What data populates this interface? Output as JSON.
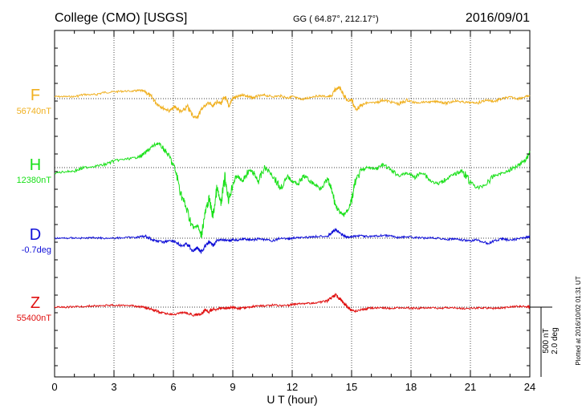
{
  "header": {
    "station": "College (CMO)  [USGS]",
    "coords": "GG ( 64.87°, 212.17°)",
    "date": "2016/09/01"
  },
  "footer": {
    "xlabel": "U T (hour)",
    "plotted": "Plotted at 2016/10/02 01:31  UT"
  },
  "scale": {
    "nt": "500 nT",
    "deg": "2.0 deg"
  },
  "colors": {
    "F": "#f0b020",
    "H": "#18e018",
    "D": "#1010d8",
    "Z": "#e01010",
    "grid": "#000000"
  },
  "chart_data": {
    "type": "line",
    "xlabel": "U T (hour)",
    "xlim": [
      0,
      24
    ],
    "xticks": [
      0,
      3,
      6,
      9,
      12,
      15,
      18,
      21,
      24
    ],
    "grid": true,
    "series": [
      {
        "name": "F",
        "label": "F",
        "baseline_label": "56740nT",
        "baseline_offset": 0,
        "x": [
          0,
          0.5,
          1,
          1.5,
          2,
          2.5,
          3,
          3.5,
          4,
          4.3,
          4.6,
          4.9,
          5.2,
          5.5,
          5.8,
          6.1,
          6.4,
          6.7,
          7,
          7.2,
          7.4,
          7.6,
          7.8,
          8,
          8.2,
          8.4,
          8.6,
          8.8,
          9,
          9.2,
          9.5,
          9.8,
          10,
          10.3,
          10.6,
          11,
          11.4,
          11.8,
          12,
          12.3,
          12.6,
          13,
          13.4,
          13.8,
          14,
          14.2,
          14.4,
          14.6,
          14.8,
          15,
          15.2,
          15.5,
          15.8,
          16.2,
          16.6,
          17,
          17.4,
          17.8,
          18.2,
          18.6,
          19,
          19.4,
          19.8,
          20.2,
          20.6,
          21,
          21.4,
          21.8,
          22.2,
          22.6,
          23,
          23.4,
          23.8,
          24
        ],
        "y": [
          15,
          15,
          15,
          30,
          28,
          45,
          50,
          55,
          55,
          60,
          50,
          10,
          -40,
          -70,
          -90,
          -60,
          -100,
          -60,
          -130,
          -140,
          -80,
          -50,
          -30,
          -60,
          -20,
          -35,
          10,
          -55,
          5,
          10,
          30,
          15,
          5,
          20,
          25,
          15,
          20,
          5,
          15,
          0,
          -5,
          15,
          20,
          15,
          20,
          70,
          80,
          30,
          -20,
          -5,
          -80,
          -50,
          -30,
          -30,
          -10,
          -25,
          -40,
          -10,
          -30,
          -25,
          -25,
          -20,
          -35,
          -15,
          -25,
          -30,
          -30,
          -10,
          -20,
          0,
          10,
          0,
          15,
          20
        ]
      },
      {
        "name": "H",
        "label": "H",
        "baseline_label": "12380nT",
        "baseline_offset": 0,
        "x": [
          0,
          0.5,
          1,
          1.5,
          2,
          2.5,
          3,
          3.5,
          4,
          4.3,
          4.6,
          4.9,
          5.2,
          5.5,
          5.8,
          6.1,
          6.4,
          6.7,
          7,
          7.2,
          7.4,
          7.6,
          7.8,
          8,
          8.2,
          8.4,
          8.6,
          8.8,
          9,
          9.2,
          9.5,
          9.8,
          10,
          10.3,
          10.6,
          11,
          11.4,
          11.8,
          12,
          12.3,
          12.6,
          13,
          13.4,
          13.8,
          14,
          14.2,
          14.4,
          14.6,
          14.8,
          15,
          15.2,
          15.5,
          15.8,
          16.2,
          16.6,
          17,
          17.4,
          17.8,
          18.2,
          18.6,
          19,
          19.4,
          19.8,
          20.2,
          20.6,
          21,
          21.4,
          21.8,
          22.2,
          22.6,
          23,
          23.4,
          23.8,
          24
        ],
        "y": [
          -40,
          -30,
          -25,
          0,
          10,
          20,
          50,
          60,
          70,
          80,
          110,
          150,
          180,
          140,
          80,
          -20,
          -200,
          -320,
          -450,
          -420,
          -500,
          -340,
          -230,
          -360,
          -150,
          -270,
          -70,
          -240,
          -120,
          -60,
          -100,
          -20,
          -30,
          -100,
          0,
          -50,
          -150,
          -70,
          -100,
          -120,
          -60,
          -110,
          -150,
          -90,
          -170,
          -280,
          -330,
          -350,
          -310,
          -240,
          -100,
          -20,
          0,
          -10,
          20,
          -20,
          -60,
          -40,
          -70,
          -30,
          -100,
          -120,
          -80,
          -50,
          -20,
          -110,
          -150,
          -120,
          -60,
          -40,
          -20,
          20,
          60,
          110
        ]
      },
      {
        "name": "D",
        "label": "D",
        "baseline_label": "-0.7deg",
        "baseline_offset": 0,
        "x": [
          0,
          0.5,
          1,
          1.5,
          2,
          2.5,
          3,
          3.5,
          4,
          4.3,
          4.6,
          4.9,
          5.2,
          5.5,
          5.8,
          6.1,
          6.4,
          6.7,
          7,
          7.2,
          7.4,
          7.6,
          7.8,
          8,
          8.2,
          8.4,
          8.6,
          8.8,
          9,
          9.2,
          9.5,
          9.8,
          10,
          10.3,
          10.6,
          11,
          11.4,
          11.8,
          12,
          12.3,
          12.6,
          13,
          13.4,
          13.8,
          14,
          14.2,
          14.4,
          14.6,
          14.8,
          15,
          15.2,
          15.5,
          15.8,
          16.2,
          16.6,
          17,
          17.4,
          17.8,
          18.2,
          18.6,
          19,
          19.4,
          19.8,
          20.2,
          20.6,
          21,
          21.4,
          21.8,
          22.2,
          22.6,
          23,
          23.4,
          23.8,
          24
        ],
        "y": [
          0,
          0,
          2,
          0,
          4,
          0,
          0,
          4,
          5,
          10,
          15,
          -10,
          -20,
          -30,
          -15,
          -25,
          -60,
          -40,
          -95,
          -70,
          -100,
          -60,
          -30,
          -50,
          -20,
          -10,
          -15,
          -20,
          -10,
          -15,
          -5,
          -10,
          -15,
          -5,
          -10,
          -20,
          0,
          -5,
          0,
          5,
          5,
          10,
          15,
          15,
          40,
          60,
          40,
          20,
          5,
          10,
          15,
          20,
          10,
          15,
          20,
          15,
          5,
          10,
          5,
          0,
          5,
          0,
          -10,
          -5,
          -15,
          -20,
          -10,
          -40,
          -20,
          -5,
          -15,
          -5,
          5,
          10
        ]
      },
      {
        "name": "Z",
        "label": "Z",
        "baseline_label": "55400nT",
        "baseline_offset": 0,
        "x": [
          0,
          0.5,
          1,
          1.5,
          2,
          2.5,
          3,
          3.5,
          4,
          4.3,
          4.6,
          4.9,
          5.2,
          5.5,
          5.8,
          6.1,
          6.4,
          6.7,
          7,
          7.2,
          7.4,
          7.6,
          7.8,
          8,
          8.2,
          8.4,
          8.6,
          8.8,
          9,
          9.2,
          9.5,
          9.8,
          10,
          10.3,
          10.6,
          11,
          11.4,
          11.8,
          12,
          12.3,
          12.6,
          13,
          13.4,
          13.8,
          14,
          14.2,
          14.4,
          14.6,
          14.8,
          15,
          15.2,
          15.5,
          15.8,
          16.2,
          16.6,
          17,
          17.4,
          17.8,
          18.2,
          18.6,
          19,
          19.4,
          19.8,
          20.2,
          20.6,
          21,
          21.4,
          21.8,
          22.2,
          22.6,
          23,
          23.4,
          23.8,
          24
        ],
        "y": [
          0,
          0,
          2,
          5,
          10,
          10,
          15,
          12,
          10,
          5,
          -5,
          -15,
          -30,
          -45,
          -50,
          -55,
          -40,
          -45,
          -60,
          -55,
          -50,
          -20,
          -35,
          -10,
          -20,
          -5,
          -10,
          -5,
          0,
          -10,
          -5,
          0,
          5,
          10,
          10,
          15,
          10,
          15,
          20,
          25,
          25,
          30,
          35,
          45,
          70,
          90,
          60,
          30,
          0,
          -20,
          -30,
          -20,
          -10,
          -5,
          -5,
          -10,
          -5,
          -5,
          -10,
          -5,
          -5,
          -10,
          -5,
          -5,
          -10,
          -10,
          -5,
          -5,
          -10,
          -5,
          0,
          5,
          5,
          0
        ]
      }
    ]
  }
}
